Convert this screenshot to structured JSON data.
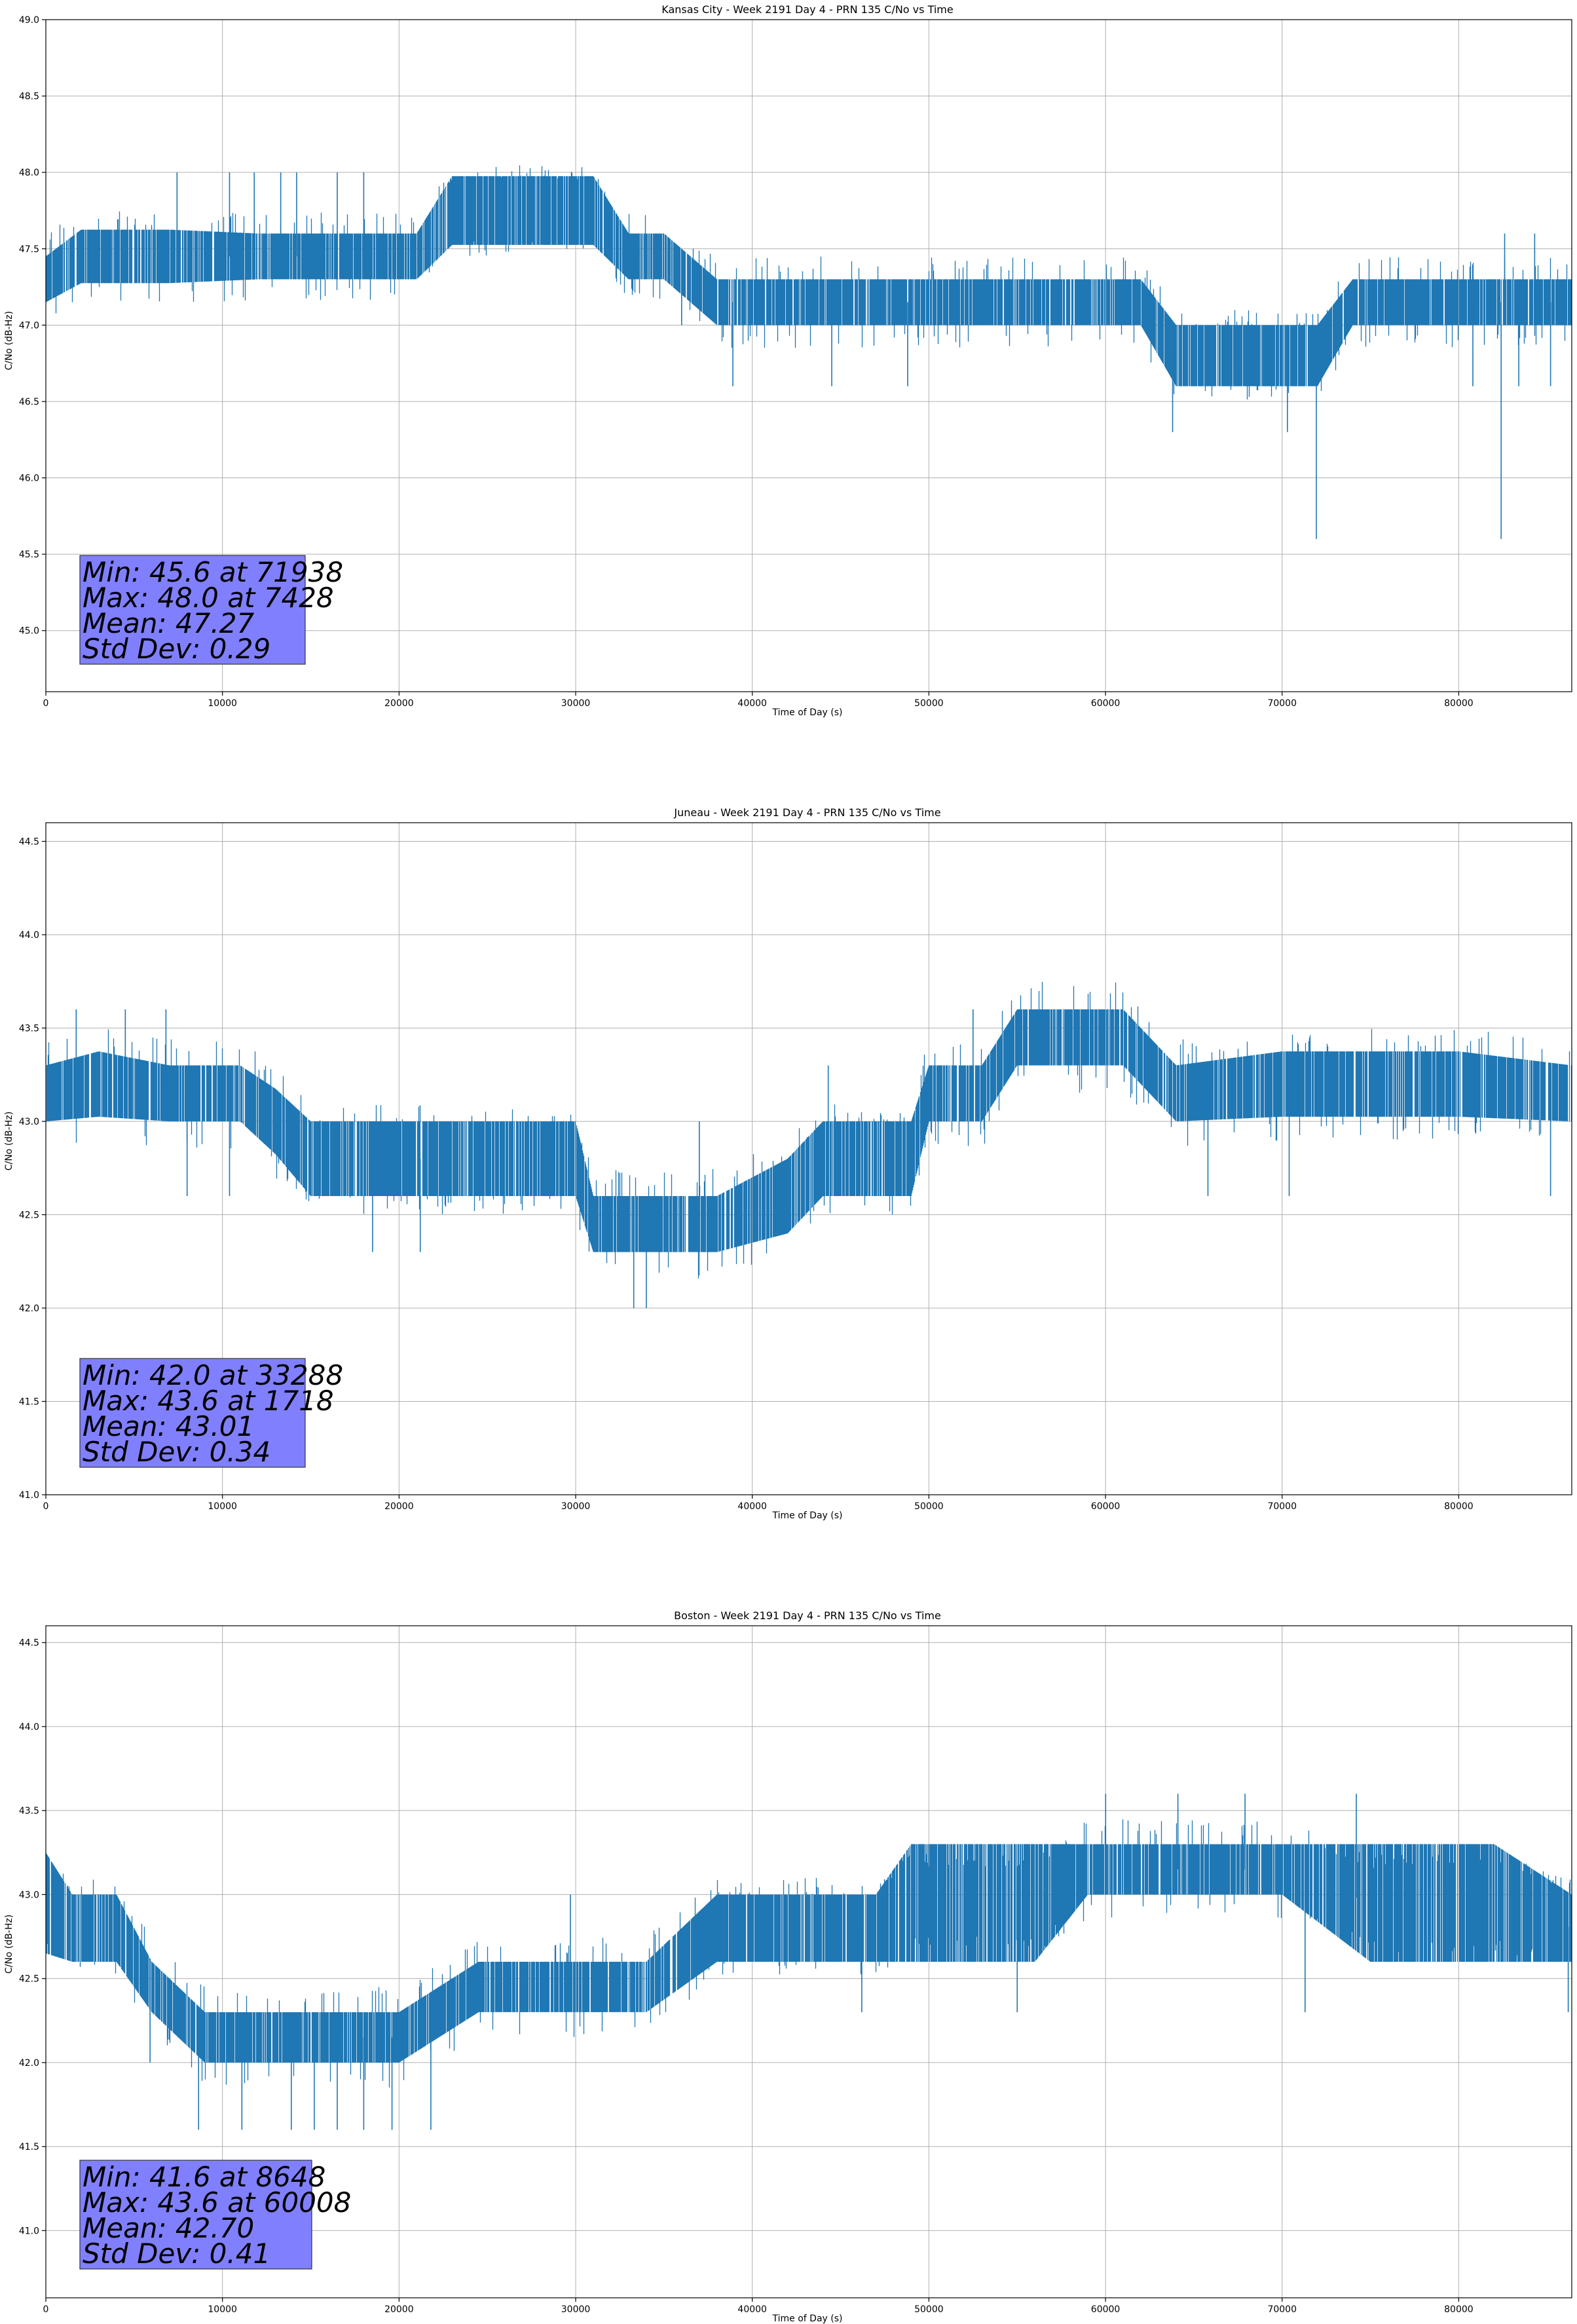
{
  "chart_data": [
    {
      "type": "line",
      "title": "Kansas City - Week 2191 Day 4 - PRN 135 C/No vs Time",
      "xlabel": "Time of Day (s)",
      "ylabel": "C/No (dB-Hz)",
      "xlim": [
        0,
        86400
      ],
      "ylim": [
        44.6,
        49.0
      ],
      "xticks": [
        "0",
        "10000",
        "20000",
        "30000",
        "40000",
        "50000",
        "60000",
        "70000",
        "80000"
      ],
      "xtick_values": [
        0,
        10000,
        20000,
        30000,
        40000,
        50000,
        60000,
        70000,
        80000
      ],
      "yticks": [
        "45.0",
        "45.5",
        "46.0",
        "46.5",
        "47.0",
        "47.5",
        "48.0",
        "48.5",
        "49.0"
      ],
      "ytick_values": [
        45.0,
        45.5,
        46.0,
        46.5,
        47.0,
        47.5,
        48.0,
        48.5,
        49.0
      ],
      "grid": true,
      "line_color": "#1f77b4",
      "series": [
        {
          "x": [
            0,
            2000,
            7000,
            12000,
            17000,
            21000,
            23000,
            27000,
            31000,
            33000,
            35000,
            38000,
            42000,
            47000,
            52000,
            56000,
            59000,
            62000,
            64000,
            67000,
            70000,
            72000,
            74000,
            78000,
            82000,
            86400
          ],
          "y": [
            47.3,
            47.45,
            47.45,
            47.45,
            47.45,
            47.45,
            47.75,
            47.75,
            47.75,
            47.45,
            47.45,
            47.15,
            47.15,
            47.15,
            47.15,
            47.15,
            47.15,
            47.15,
            46.8,
            46.8,
            46.8,
            46.8,
            47.15,
            47.15,
            47.15,
            47.15
          ],
          "band": [
            0.3,
            0.35,
            0.35,
            0.3,
            0.3,
            0.3,
            0.45,
            0.45,
            0.45,
            0.3,
            0.3,
            0.3,
            0.3,
            0.3,
            0.3,
            0.3,
            0.3,
            0.3,
            0.4,
            0.4,
            0.4,
            0.4,
            0.3,
            0.3,
            0.3,
            0.3
          ]
        }
      ],
      "spikes": [
        {
          "x": 7428,
          "y": 48.0
        },
        {
          "x": 10400,
          "y": 48.0
        },
        {
          "x": 11800,
          "y": 48.0
        },
        {
          "x": 13300,
          "y": 48.0
        },
        {
          "x": 14200,
          "y": 48.0
        },
        {
          "x": 16500,
          "y": 48.0
        },
        {
          "x": 18000,
          "y": 48.0
        },
        {
          "x": 36000,
          "y": 47.0
        },
        {
          "x": 38900,
          "y": 46.6
        },
        {
          "x": 44500,
          "y": 46.6
        },
        {
          "x": 48800,
          "y": 46.6
        },
        {
          "x": 63800,
          "y": 46.3
        },
        {
          "x": 70300,
          "y": 46.3
        },
        {
          "x": 71938,
          "y": 45.6
        },
        {
          "x": 80800,
          "y": 46.6
        },
        {
          "x": 82400,
          "y": 45.6
        },
        {
          "x": 83400,
          "y": 46.6
        },
        {
          "x": 85200,
          "y": 46.6
        },
        {
          "x": 82600,
          "y": 47.6
        },
        {
          "x": 84300,
          "y": 47.6
        }
      ],
      "annotations": [
        "Min: 45.6 at 71938",
        "Max: 48.0 at 7428",
        "Mean: 47.27",
        "Std Dev: 0.29"
      ],
      "annotation_box_color": "#8080ff"
    },
    {
      "type": "line",
      "title": "Juneau - Week 2191 Day 4 - PRN 135 C/No vs Time",
      "xlabel": "Time of Day (s)",
      "ylabel": "C/No (dB-Hz)",
      "xlim": [
        0,
        86400
      ],
      "ylim": [
        41.0,
        44.6
      ],
      "xticks": [
        "0",
        "10000",
        "20000",
        "30000",
        "40000",
        "50000",
        "60000",
        "70000",
        "80000"
      ],
      "xtick_values": [
        0,
        10000,
        20000,
        30000,
        40000,
        50000,
        60000,
        70000,
        80000
      ],
      "yticks": [
        "41.0",
        "41.5",
        "42.0",
        "42.5",
        "43.0",
        "43.5",
        "44.0",
        "44.5"
      ],
      "ytick_values": [
        41.0,
        41.5,
        42.0,
        42.5,
        43.0,
        43.5,
        44.0,
        44.5
      ],
      "grid": true,
      "line_color": "#1f77b4",
      "series": [
        {
          "x": [
            0,
            3000,
            7000,
            11000,
            13000,
            15000,
            18000,
            22000,
            26000,
            30000,
            31000,
            34000,
            38000,
            42000,
            44000,
            49000,
            50000,
            53000,
            55000,
            58000,
            61000,
            64000,
            70000,
            75000,
            80000,
            86400
          ],
          "y": [
            43.15,
            43.2,
            43.15,
            43.15,
            43.0,
            42.8,
            42.8,
            42.8,
            42.8,
            42.8,
            42.45,
            42.45,
            42.45,
            42.6,
            42.8,
            42.8,
            43.15,
            43.15,
            43.45,
            43.45,
            43.45,
            43.15,
            43.2,
            43.2,
            43.2,
            43.15
          ],
          "band": [
            0.3,
            0.35,
            0.3,
            0.3,
            0.35,
            0.4,
            0.4,
            0.4,
            0.4,
            0.4,
            0.3,
            0.3,
            0.3,
            0.4,
            0.4,
            0.4,
            0.3,
            0.3,
            0.3,
            0.3,
            0.3,
            0.3,
            0.35,
            0.35,
            0.35,
            0.3
          ]
        }
      ],
      "spikes": [
        {
          "x": 1718,
          "y": 43.6
        },
        {
          "x": 4500,
          "y": 43.6
        },
        {
          "x": 6800,
          "y": 43.6
        },
        {
          "x": 8000,
          "y": 42.6
        },
        {
          "x": 10400,
          "y": 42.6
        },
        {
          "x": 18500,
          "y": 42.3
        },
        {
          "x": 21200,
          "y": 42.3
        },
        {
          "x": 33288,
          "y": 42.0
        },
        {
          "x": 34000,
          "y": 42.0
        },
        {
          "x": 37000,
          "y": 43.0
        },
        {
          "x": 44300,
          "y": 43.3
        },
        {
          "x": 52500,
          "y": 43.6
        },
        {
          "x": 65800,
          "y": 42.6
        },
        {
          "x": 70400,
          "y": 42.6
        },
        {
          "x": 85200,
          "y": 42.6
        }
      ],
      "annotations": [
        "Min: 42.0 at 33288",
        "Max: 43.6 at 1718",
        "Mean: 43.01",
        "Std Dev: 0.34"
      ],
      "annotation_box_color": "#8080ff"
    },
    {
      "type": "line",
      "title": "Boston - Week 2191 Day 4 - PRN 135 C/No vs Time",
      "xlabel": "Time of Day (s)",
      "ylabel": "C/No (dB-Hz)",
      "xlim": [
        0,
        86400
      ],
      "ylim": [
        40.6,
        44.6
      ],
      "xticks": [
        "0",
        "10000",
        "20000",
        "30000",
        "40000",
        "50000",
        "60000",
        "70000",
        "80000"
      ],
      "xtick_values": [
        0,
        10000,
        20000,
        30000,
        40000,
        50000,
        60000,
        70000,
        80000
      ],
      "yticks": [
        "41.0",
        "41.5",
        "42.0",
        "42.5",
        "43.0",
        "43.5",
        "44.0",
        "44.5"
      ],
      "ytick_values": [
        41.0,
        41.5,
        42.0,
        42.5,
        43.0,
        43.5,
        44.0,
        44.5
      ],
      "grid": true,
      "line_color": "#1f77b4",
      "series": [
        {
          "x": [
            0,
            1500,
            4000,
            6000,
            9000,
            12000,
            16000,
            20000,
            24500,
            27000,
            30000,
            34000,
            38000,
            40000,
            42000,
            47000,
            49000,
            52000,
            56000,
            59000,
            62000,
            66000,
            70000,
            75000,
            78000,
            82000,
            86400
          ],
          "y": [
            42.95,
            42.8,
            42.8,
            42.45,
            42.15,
            42.15,
            42.15,
            42.15,
            42.45,
            42.45,
            42.45,
            42.45,
            42.8,
            42.8,
            42.8,
            42.8,
            42.95,
            42.95,
            42.95,
            43.15,
            43.15,
            43.15,
            43.15,
            42.95,
            42.95,
            42.95,
            42.8
          ],
          "band": [
            0.6,
            0.4,
            0.4,
            0.3,
            0.3,
            0.3,
            0.3,
            0.3,
            0.3,
            0.3,
            0.3,
            0.3,
            0.4,
            0.4,
            0.4,
            0.4,
            0.7,
            0.7,
            0.7,
            0.3,
            0.3,
            0.3,
            0.3,
            0.7,
            0.7,
            0.7,
            0.4
          ]
        }
      ],
      "spikes": [
        {
          "x": 5900,
          "y": 42.0
        },
        {
          "x": 8648,
          "y": 41.6
        },
        {
          "x": 11100,
          "y": 41.6
        },
        {
          "x": 13900,
          "y": 41.6
        },
        {
          "x": 15200,
          "y": 41.6
        },
        {
          "x": 16500,
          "y": 41.6
        },
        {
          "x": 18000,
          "y": 41.6
        },
        {
          "x": 19600,
          "y": 41.6
        },
        {
          "x": 21800,
          "y": 41.6
        },
        {
          "x": 29700,
          "y": 43.0
        },
        {
          "x": 46200,
          "y": 42.3
        },
        {
          "x": 55000,
          "y": 42.3
        },
        {
          "x": 60008,
          "y": 43.6
        },
        {
          "x": 64100,
          "y": 43.6
        },
        {
          "x": 67900,
          "y": 43.6
        },
        {
          "x": 71300,
          "y": 42.3
        },
        {
          "x": 74200,
          "y": 43.6
        },
        {
          "x": 86200,
          "y": 42.3
        }
      ],
      "annotations": [
        "Min: 41.6 at 8648",
        "Max: 43.6 at 60008",
        "Mean: 42.70",
        "Std Dev: 0.41"
      ],
      "annotation_box_color": "#8080ff"
    }
  ]
}
